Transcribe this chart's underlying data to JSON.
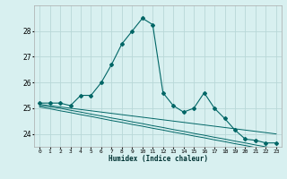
{
  "xlabel": "Humidex (Indice chaleur)",
  "x": [
    0,
    1,
    2,
    3,
    4,
    5,
    6,
    7,
    8,
    9,
    10,
    11,
    12,
    13,
    14,
    15,
    16,
    17,
    18,
    19,
    20,
    21,
    22,
    23
  ],
  "main_line": [
    25.2,
    25.2,
    25.2,
    25.1,
    25.5,
    25.5,
    26.0,
    26.7,
    27.5,
    28.0,
    28.5,
    28.25,
    25.6,
    25.1,
    24.85,
    25.0,
    25.6,
    25.0,
    24.6,
    24.15,
    23.8,
    23.75,
    23.65,
    23.65
  ],
  "line2": [
    25.15,
    25.1,
    25.05,
    25.0,
    24.95,
    24.9,
    24.85,
    24.8,
    24.75,
    24.7,
    24.65,
    24.6,
    24.55,
    24.5,
    24.45,
    24.4,
    24.35,
    24.3,
    24.25,
    24.2,
    24.15,
    24.1,
    24.05,
    24.0
  ],
  "line3": [
    25.1,
    25.05,
    25.0,
    24.92,
    24.85,
    24.77,
    24.7,
    24.62,
    24.55,
    24.47,
    24.4,
    24.32,
    24.25,
    24.17,
    24.1,
    24.02,
    23.95,
    23.87,
    23.8,
    23.72,
    23.65,
    23.57,
    23.5,
    23.42
  ],
  "line4": [
    25.05,
    24.98,
    24.9,
    24.83,
    24.75,
    24.68,
    24.6,
    24.52,
    24.45,
    24.37,
    24.3,
    24.22,
    24.15,
    24.07,
    24.0,
    23.92,
    23.85,
    23.77,
    23.7,
    23.62,
    23.55,
    23.47,
    23.4,
    23.35
  ],
  "line_color": "#006666",
  "bg_color": "#d8f0f0",
  "grid_color": "#b8d8d8",
  "ylim": [
    23.5,
    29.0
  ],
  "yticks": [
    24,
    25,
    26,
    27,
    28
  ],
  "xlim": [
    -0.5,
    23.5
  ]
}
